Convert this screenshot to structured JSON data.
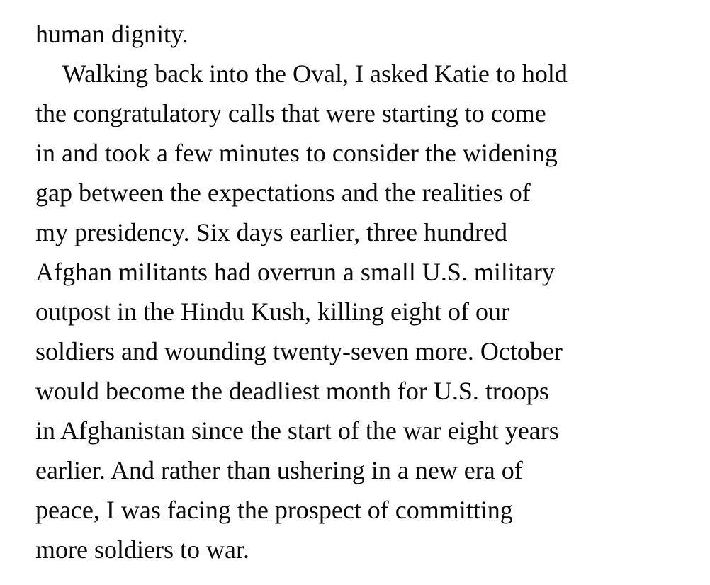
{
  "document": {
    "text_color": "#0a0a0a",
    "background_color": "#ffffff",
    "lines": [
      {
        "text": "human dignity.",
        "indent": false
      },
      {
        "text": "Walking back into the Oval, I asked Katie to hold",
        "indent": true
      },
      {
        "text": "the congratulatory calls that were starting to come",
        "indent": false
      },
      {
        "text": "in and took a few minutes to consider the widening",
        "indent": false
      },
      {
        "text": "gap between the expectations and the realities of",
        "indent": false
      },
      {
        "text": "my presidency. Six days earlier, three hundred",
        "indent": false
      },
      {
        "text": "Afghan militants had overrun a small U.S. military",
        "indent": false
      },
      {
        "text": "outpost in the Hindu Kush, killing eight of our",
        "indent": false
      },
      {
        "text": "soldiers and wounding twenty-seven more. October",
        "indent": false
      },
      {
        "text": "would become the deadliest month for U.S. troops",
        "indent": false
      },
      {
        "text": "in Afghanistan since the start of the war eight years",
        "indent": false
      },
      {
        "text": "earlier. And rather than ushering in a new era of",
        "indent": false
      },
      {
        "text": "peace, I was facing the prospect of committing",
        "indent": false
      },
      {
        "text": "more soldiers to war.",
        "indent": false
      }
    ]
  }
}
